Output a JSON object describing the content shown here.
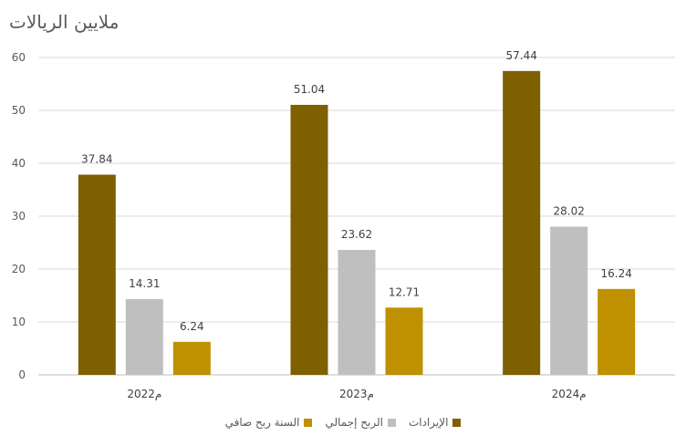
{
  "chart_data": {
    "type": "bar",
    "title": "ملايين الريالات",
    "categories": [
      "2022م",
      "2023م",
      "2024م"
    ],
    "series": [
      {
        "name": "الإيرادات",
        "values": [
          37.84,
          51.04,
          57.44
        ],
        "color": "#7f6000"
      },
      {
        "name": "الربح إجمالي",
        "values": [
          14.31,
          23.62,
          28.02
        ],
        "color": "#bfbfbf"
      },
      {
        "name": "السنة ربح صافي",
        "values": [
          6.24,
          12.71,
          16.24
        ],
        "color": "#bf9000"
      }
    ],
    "ylim": [
      0,
      60
    ],
    "yticks": [
      0,
      10,
      20,
      30,
      40,
      50,
      60
    ],
    "grid": true,
    "legend_position": "bottom"
  }
}
